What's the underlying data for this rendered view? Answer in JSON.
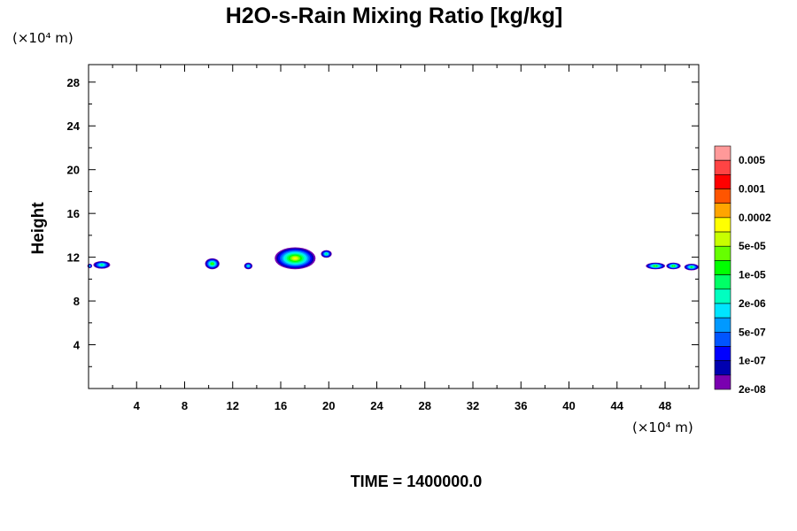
{
  "chart_data": {
    "type": "heatmap",
    "title": "H2O-s-Rain Mixing Ratio [kg/kg]",
    "xlabel": "",
    "ylabel": "Height",
    "x_unit": "(×10⁴ m)",
    "y_unit": "(×10⁴ m)",
    "xlim": [
      0,
      50.8
    ],
    "ylim": [
      0,
      29.6
    ],
    "x_ticks": [
      4,
      8,
      12,
      16,
      20,
      24,
      28,
      32,
      36,
      40,
      44,
      48
    ],
    "y_ticks": [
      4,
      8,
      12,
      16,
      20,
      24,
      28
    ],
    "colorbar": {
      "labels": [
        "0.005",
        "0.001",
        "0.0002",
        "5e-05",
        "1e-05",
        "2e-06",
        "5e-07",
        "1e-07",
        "2e-08"
      ],
      "colors": [
        "#ff9999",
        "#ff4444",
        "#ff0000",
        "#ff5500",
        "#ffa500",
        "#ffff00",
        "#c8ff00",
        "#66ff00",
        "#00ff00",
        "#00ff66",
        "#00ffc0",
        "#00e5ff",
        "#0099ff",
        "#0055ff",
        "#0000ff",
        "#0000b0",
        "#7a00b0"
      ]
    },
    "features": [
      {
        "x": 1.1,
        "y": 11.3,
        "rx": 0.7,
        "ry": 0.35,
        "peak": "1e-05"
      },
      {
        "x": 0.1,
        "y": 11.2,
        "rx": 0.2,
        "ry": 0.2,
        "peak": "2e-06"
      },
      {
        "x": 10.3,
        "y": 11.4,
        "rx": 0.6,
        "ry": 0.5,
        "peak": "5e-05"
      },
      {
        "x": 13.3,
        "y": 11.2,
        "rx": 0.35,
        "ry": 0.3,
        "peak": "5e-06"
      },
      {
        "x": 17.2,
        "y": 11.9,
        "rx": 1.7,
        "ry": 1.0,
        "peak": "0.0002"
      },
      {
        "x": 19.8,
        "y": 12.3,
        "rx": 0.45,
        "ry": 0.35,
        "peak": "1e-05"
      },
      {
        "x": 47.2,
        "y": 11.2,
        "rx": 0.8,
        "ry": 0.3,
        "peak": "5e-05"
      },
      {
        "x": 48.7,
        "y": 11.2,
        "rx": 0.6,
        "ry": 0.3,
        "peak": "5e-05"
      },
      {
        "x": 50.2,
        "y": 11.1,
        "rx": 0.6,
        "ry": 0.3,
        "peak": "2e-05"
      }
    ]
  },
  "footer": {
    "time_label": "TIME = 1400000.0"
  }
}
